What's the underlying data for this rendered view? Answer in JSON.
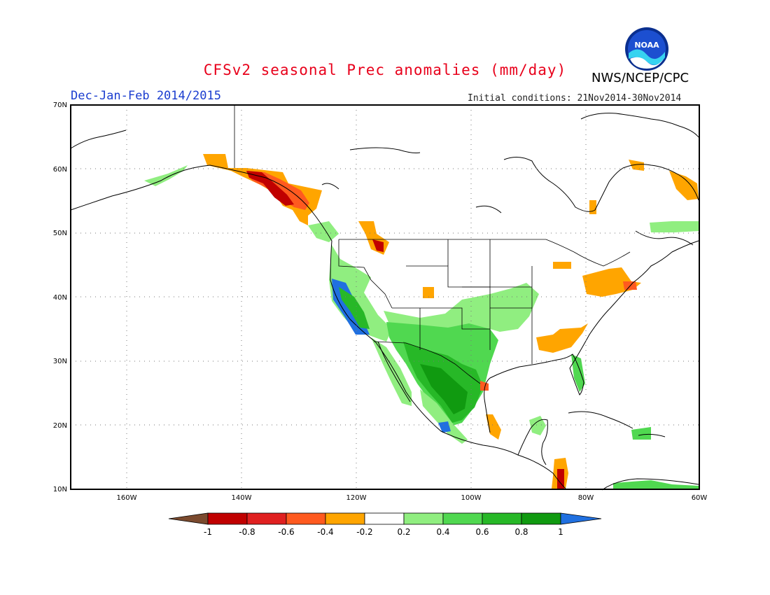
{
  "header": {
    "title": "CFSv2 seasonal Prec anomalies (mm/day)",
    "org": "NWS/NCEP/CPC",
    "logo_text": "NOAA",
    "season": "Dec-Jan-Feb 2014/2015",
    "initial_conditions": "Initial conditions: 21Nov2014-30Nov2014"
  },
  "map": {
    "lon_ticks": [
      "160W",
      "140W",
      "120W",
      "100W",
      "80W",
      "60W"
    ],
    "lat_ticks": [
      "70N",
      "60N",
      "50N",
      "40N",
      "30N",
      "20N",
      "10N"
    ],
    "extent": {
      "lon": [
        -172,
        -60
      ],
      "lat": [
        10,
        70
      ]
    },
    "grid": "dotted"
  },
  "colorbar": {
    "labels": [
      "-1",
      "-0.8",
      "-0.6",
      "-0.4",
      "-0.2",
      "0.2",
      "0.4",
      "0.6",
      "0.8",
      "1"
    ],
    "colors": [
      "#7b4a2e",
      "#c00000",
      "#e02020",
      "#ff5a1f",
      "#ffa500",
      "#ffffff",
      "#90ee80",
      "#50d850",
      "#27b827",
      "#109a10",
      "#2070e0"
    ]
  },
  "regions": [
    {
      "name": "alaska-southeast-coast",
      "color": "#c00000"
    },
    {
      "name": "alaska-panhandle",
      "color": "#ff5a1f"
    },
    {
      "name": "gulf-of-alaska-dry",
      "color": "#ffa500"
    },
    {
      "name": "california-wet",
      "color": "#2070e0"
    },
    {
      "name": "southwest-us-wet",
      "color": "#27b827"
    },
    {
      "name": "great-plains-wet",
      "color": "#90ee80"
    },
    {
      "name": "mexico-wet",
      "color": "#109a10"
    },
    {
      "name": "great-lakes-dry",
      "color": "#ffa500"
    },
    {
      "name": "southeast-us-dry",
      "color": "#ffa500"
    }
  ]
}
